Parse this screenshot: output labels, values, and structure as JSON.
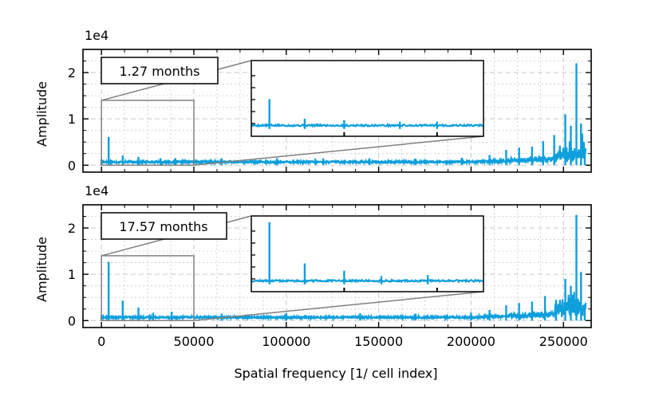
{
  "colors": {
    "series": "#0e9fdc",
    "grid": "#c8c8c8",
    "zoom": "#808080",
    "axis": "#000000"
  },
  "chart_data": [
    {
      "type": "line",
      "panel": "top",
      "title": "",
      "label_box": "1.27 months",
      "ylabel": "Amplitude",
      "y_offset_label": "1e4",
      "xlabel": "",
      "xlim": [
        -10000,
        265000
      ],
      "ylim": [
        -1500,
        25000
      ],
      "yticks": [
        0,
        10000,
        20000
      ],
      "ytick_labels": [
        "0",
        "1",
        "2"
      ],
      "noise_level": 900,
      "peaks": [
        {
          "x": 0,
          "y": 1300
        },
        {
          "x": 3900,
          "y": 6100
        },
        {
          "x": 11500,
          "y": 2100
        },
        {
          "x": 20000,
          "y": 1800
        },
        {
          "x": 32000,
          "y": 1500
        },
        {
          "x": 40000,
          "y": 1500
        },
        {
          "x": 65000,
          "y": 1500
        },
        {
          "x": 95000,
          "y": 1500
        },
        {
          "x": 120000,
          "y": 1500
        },
        {
          "x": 145000,
          "y": 1500
        },
        {
          "x": 170000,
          "y": 1400
        },
        {
          "x": 195000,
          "y": 1600
        },
        {
          "x": 210000,
          "y": 2200
        },
        {
          "x": 219000,
          "y": 3300
        },
        {
          "x": 226000,
          "y": 3800
        },
        {
          "x": 233000,
          "y": 4000
        },
        {
          "x": 239000,
          "y": 5200
        },
        {
          "x": 245000,
          "y": 6500
        },
        {
          "x": 251000,
          "y": 11000
        },
        {
          "x": 254000,
          "y": 8500
        },
        {
          "x": 257000,
          "y": 22000
        },
        {
          "x": 259500,
          "y": 9000
        },
        {
          "x": 261500,
          "y": 3000
        }
      ],
      "zoom_region": {
        "x": [
          0,
          50000
        ],
        "y": [
          0,
          14000
        ]
      }
    },
    {
      "type": "line",
      "panel": "bottom",
      "title": "",
      "label_box": "17.57 months",
      "ylabel": "Amplitude",
      "y_offset_label": "1e4",
      "xlabel": "Spatial frequency [1/ cell index]",
      "xlim": [
        -10000,
        265000
      ],
      "ylim": [
        -1500,
        25000
      ],
      "xticks": [
        0,
        50000,
        100000,
        150000,
        200000,
        250000
      ],
      "xtick_labels": [
        "0",
        "50000",
        "100000",
        "150000",
        "200000",
        "250000"
      ],
      "yticks": [
        0,
        10000,
        20000
      ],
      "ytick_labels": [
        "0",
        "1",
        "2"
      ],
      "noise_level": 900,
      "peaks": [
        {
          "x": 0,
          "y": 1200
        },
        {
          "x": 3900,
          "y": 12700
        },
        {
          "x": 11500,
          "y": 4300
        },
        {
          "x": 20000,
          "y": 2800
        },
        {
          "x": 28000,
          "y": 1700
        },
        {
          "x": 38000,
          "y": 1900
        },
        {
          "x": 65000,
          "y": 1500
        },
        {
          "x": 100000,
          "y": 1600
        },
        {
          "x": 140000,
          "y": 1600
        },
        {
          "x": 170000,
          "y": 1500
        },
        {
          "x": 200000,
          "y": 1700
        },
        {
          "x": 210000,
          "y": 2300
        },
        {
          "x": 219000,
          "y": 3300
        },
        {
          "x": 226000,
          "y": 3800
        },
        {
          "x": 233000,
          "y": 4100
        },
        {
          "x": 240000,
          "y": 5300
        },
        {
          "x": 246000,
          "y": 4500
        },
        {
          "x": 251000,
          "y": 9000
        },
        {
          "x": 254000,
          "y": 7500
        },
        {
          "x": 257000,
          "y": 22800
        },
        {
          "x": 259500,
          "y": 10500
        },
        {
          "x": 261500,
          "y": 3500
        }
      ],
      "zoom_region": {
        "x": [
          0,
          50000
        ],
        "y": [
          0,
          14000
        ]
      }
    }
  ]
}
